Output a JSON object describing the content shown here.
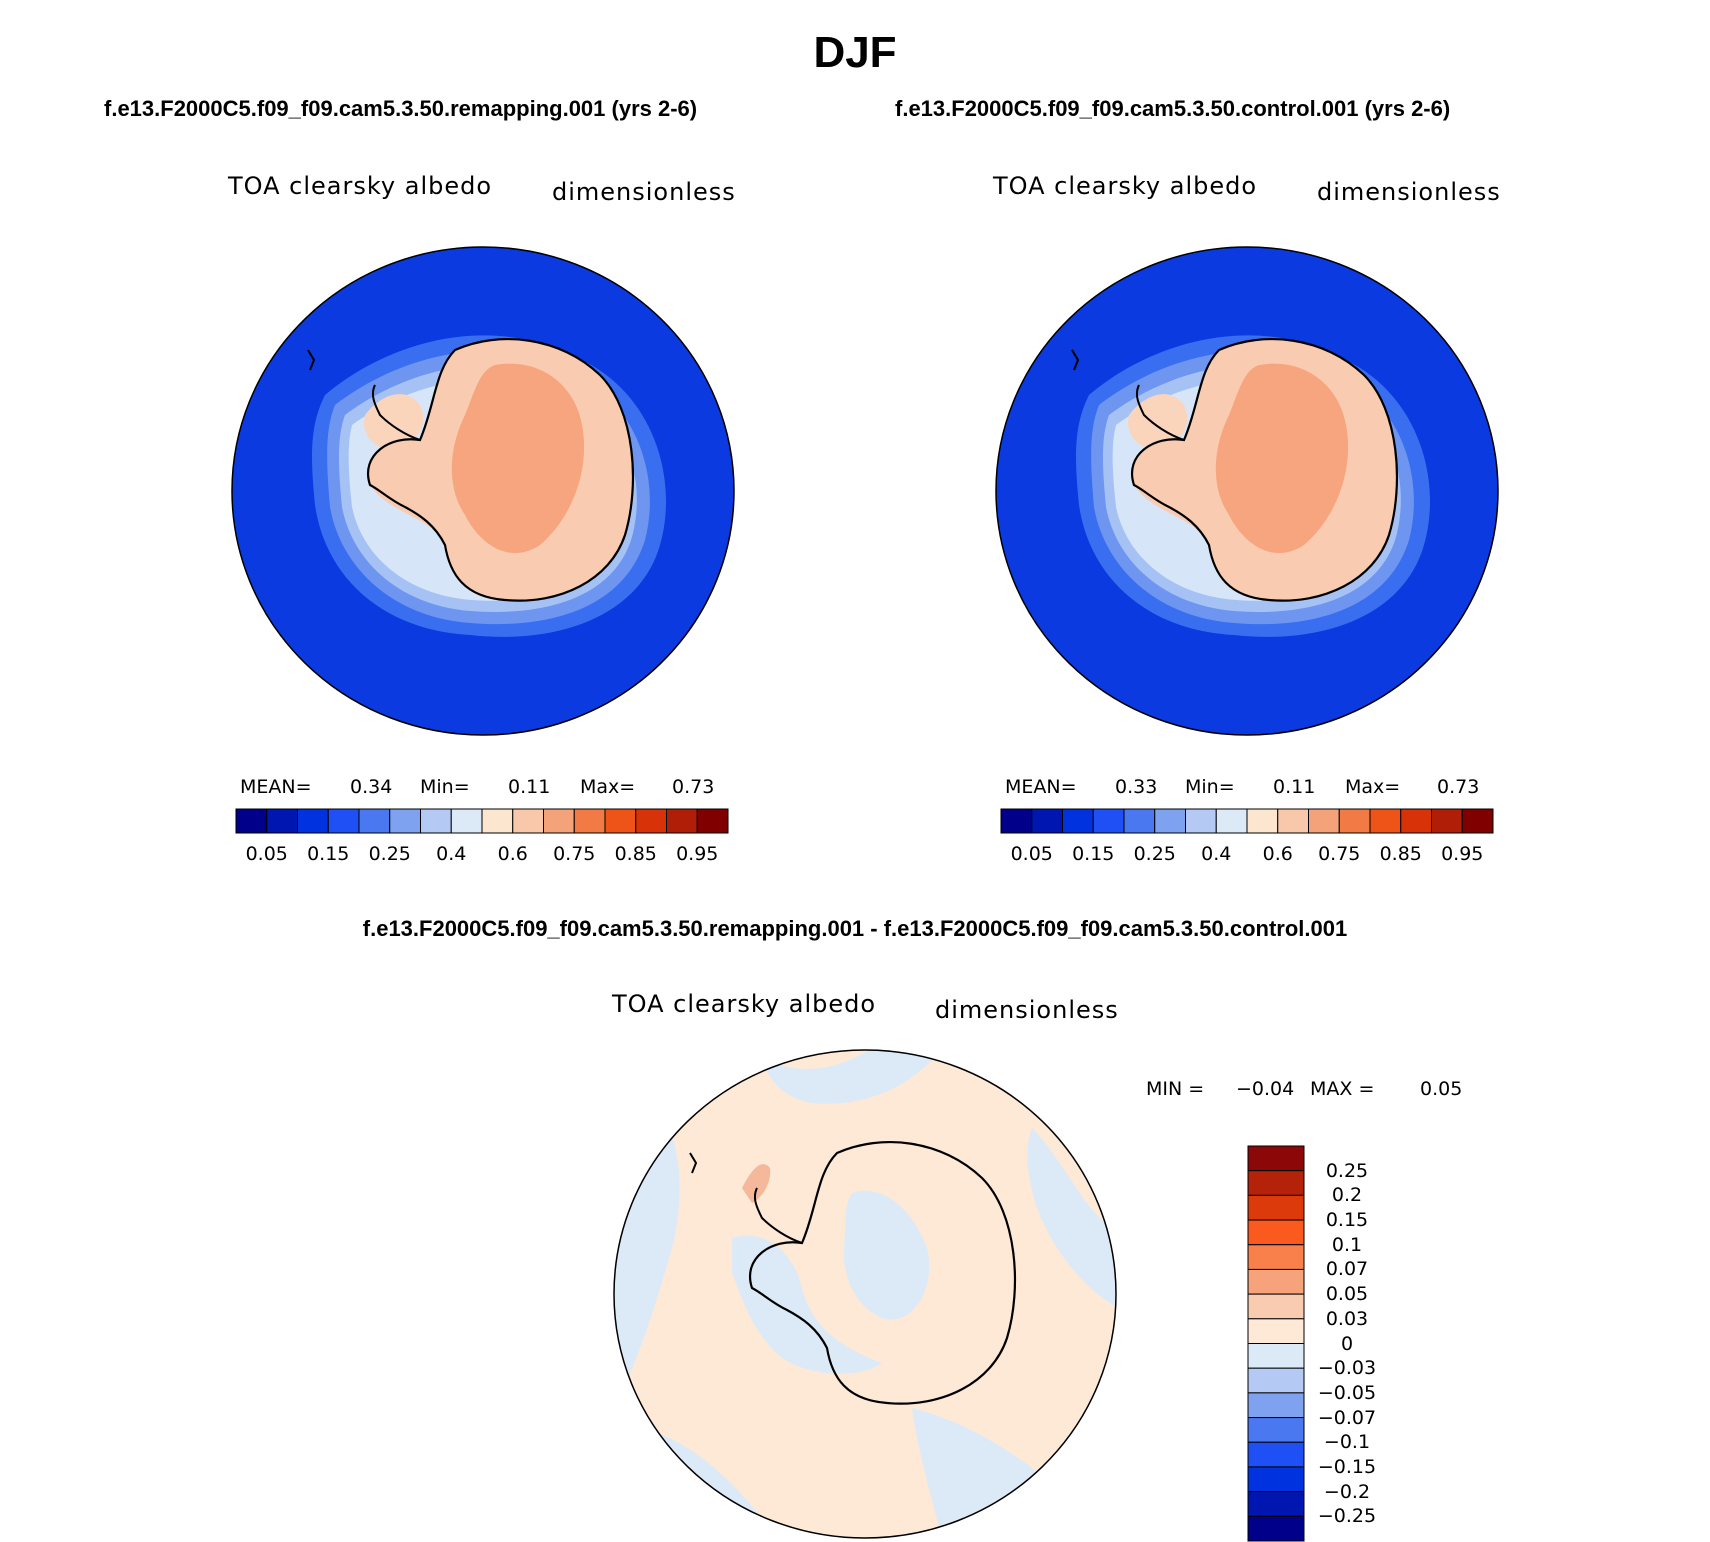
{
  "figure": {
    "season": "DJF",
    "panel_left": {
      "case": "f.e13.F2000C5.f09_f09.cam5.3.50.remapping.001 (yrs 2-6)",
      "variable": "TOA clearsky albedo",
      "units": "dimensionless",
      "mean_label": "MEAN=",
      "mean": "0.34",
      "min_label": "Min=",
      "min": "0.11",
      "max_label": "Max=",
      "max": "0.73"
    },
    "panel_right": {
      "case": "f.e13.F2000C5.f09_f09.cam5.3.50.control.001 (yrs 2-6)",
      "variable": "TOA clearsky albedo",
      "units": "dimensionless",
      "mean_label": "MEAN=",
      "mean": "0.33",
      "min_label": "Min=",
      "min": "0.11",
      "max_label": "Max=",
      "max": "0.73"
    },
    "panel_diff": {
      "case": "f.e13.F2000C5.f09_f09.cam5.3.50.remapping.001 - f.e13.F2000C5.f09_f09.cam5.3.50.control.001",
      "variable": "TOA clearsky albedo",
      "units": "dimensionless",
      "min_label": "MIN =",
      "min": "−0.04",
      "max_label": "MAX =",
      "max": "0.05"
    }
  },
  "colorbar_abs": {
    "colors": [
      "#00008a",
      "#0016b0",
      "#0032e0",
      "#1e50f5",
      "#4a78f0",
      "#7ea2f0",
      "#b4caf5",
      "#dceaf8",
      "#fde6d0",
      "#f9c8aa",
      "#f4a27a",
      "#f27a45",
      "#ee5418",
      "#d83208",
      "#b01e08",
      "#800000"
    ],
    "tick_labels": [
      "0.05",
      "0.15",
      "0.25",
      "0.4",
      "0.6",
      "0.75",
      "0.85",
      "0.95"
    ]
  },
  "colorbar_diff": {
    "colors_top_to_bottom": [
      "#8c0808",
      "#b4220a",
      "#dc3a0a",
      "#fb5a1e",
      "#f9804a",
      "#f6a27a",
      "#f9cbb0",
      "#fde9d6",
      "#dceaf8",
      "#b4caf5",
      "#7ea2f0",
      "#4a78f0",
      "#1e50f5",
      "#0032e0",
      "#0016b0",
      "#00008a"
    ],
    "tick_labels": [
      "0.25",
      "0.2",
      "0.15",
      "0.1",
      "0.07",
      "0.05",
      "0.03",
      "0",
      "−0.03",
      "−0.05",
      "−0.07",
      "−0.1",
      "−0.15",
      "−0.2",
      "−0.25"
    ]
  },
  "legend_colors": {
    "ocean": "#0a3ae0",
    "ice_interior": "#f7a57e",
    "ice_edge": "#f9ccb2",
    "diff_positive": "#fde9d6",
    "diff_negative": "#dceaf8"
  }
}
